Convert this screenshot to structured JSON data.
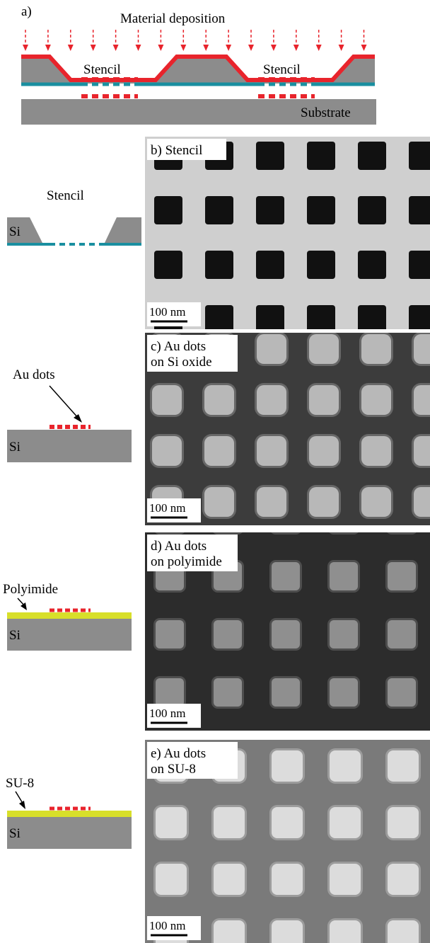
{
  "panel_a": {
    "label": "a)",
    "title": "Material deposition",
    "stencil_labels": [
      "Stencil",
      "Stencil"
    ],
    "substrate": "Substrate"
  },
  "rows": [
    {
      "schematic_label": "Stencil",
      "material": "Si",
      "image_label": [
        "b) Stencil"
      ],
      "scale_bar": "100 nm"
    },
    {
      "schematic_label": "Au dots",
      "material": "Si",
      "image_label": [
        "c) Au dots",
        "on Si oxide"
      ],
      "scale_bar": "100 nm"
    },
    {
      "schematic_label": "Polyimide",
      "material": "Si",
      "image_label": [
        "d) Au dots",
        "on polyimide"
      ],
      "scale_bar": "100 nm"
    },
    {
      "schematic_label": "SU-8",
      "material": "Si",
      "image_label": [
        "e) Au dots",
        "on SU-8"
      ],
      "scale_bar": "100 nm"
    }
  ]
}
